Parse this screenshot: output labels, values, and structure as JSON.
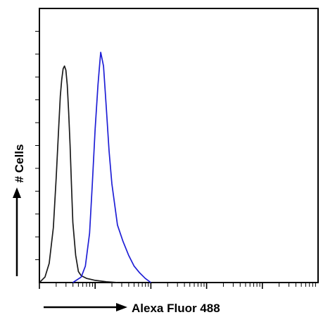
{
  "chart_data": {
    "type": "line",
    "title": "",
    "xlabel": "Alexa Fluor 488",
    "ylabel": "# Cells",
    "xscale": "log",
    "xlim": [
      0,
      1
    ],
    "ylim": [
      0,
      1
    ],
    "grid": false,
    "legend": "none",
    "series": [
      {
        "color": "#1a1a1a",
        "x": [
          0.0,
          0.02,
          0.035,
          0.05,
          0.06,
          0.07,
          0.075,
          0.08,
          0.085,
          0.09,
          0.095,
          0.1,
          0.105,
          0.11,
          0.115,
          0.12,
          0.13,
          0.14,
          0.15,
          0.17,
          0.2,
          0.24,
          0.28
        ],
        "y": [
          0.0,
          0.02,
          0.07,
          0.2,
          0.38,
          0.58,
          0.68,
          0.74,
          0.78,
          0.79,
          0.775,
          0.72,
          0.62,
          0.5,
          0.36,
          0.22,
          0.1,
          0.04,
          0.025,
          0.015,
          0.008,
          0.003,
          0.0
        ]
      },
      {
        "color": "#1f1fd6",
        "x": [
          0.12,
          0.15,
          0.165,
          0.18,
          0.19,
          0.2,
          0.21,
          0.215,
          0.22,
          0.23,
          0.24,
          0.25,
          0.26,
          0.28,
          0.3,
          0.32,
          0.34,
          0.36,
          0.38,
          0.4
        ],
        "y": [
          0.0,
          0.02,
          0.06,
          0.18,
          0.36,
          0.56,
          0.72,
          0.78,
          0.84,
          0.79,
          0.64,
          0.48,
          0.36,
          0.21,
          0.15,
          0.1,
          0.06,
          0.035,
          0.015,
          0.0
        ]
      }
    ]
  }
}
